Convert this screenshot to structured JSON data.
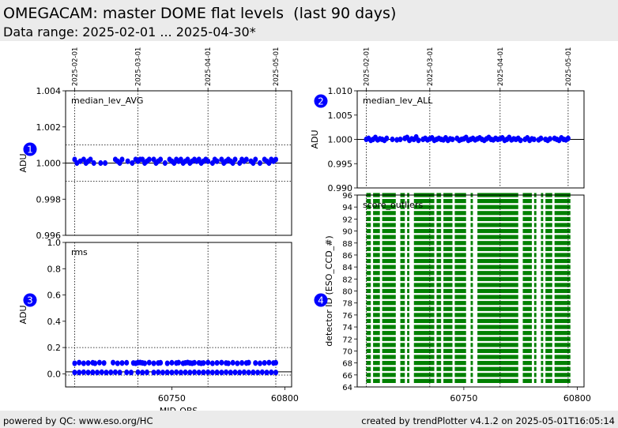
{
  "header": {
    "title": "OMEGACAM: master DOME flat levels  (last 90 days)",
    "subtitle": "Data range: 2025-02-01 ... 2025-04-30*"
  },
  "footer": {
    "left": "powered by QC: www.eso.org/HC",
    "right": "created by trendPlotter v4.1.2 on 2025-05-01T16:05:14"
  },
  "colors": {
    "points": "#0000ff",
    "bars": "#008000",
    "badge": "#0000ff",
    "header_bg": "#ebebeb"
  },
  "chart_data": [
    {
      "id": 1,
      "type": "scatter",
      "badge": "1",
      "annotation": "median_lev_AVG",
      "ylabel": "ADU",
      "xlabel": "",
      "xlim": [
        60703,
        60803
      ],
      "ylim": [
        0.996,
        1.004
      ],
      "yticks": [
        "0.996",
        "0.998",
        "1.000",
        "1.002",
        "1.004"
      ],
      "ytick_values": [
        0.996,
        0.998,
        1.0,
        1.002,
        1.004
      ],
      "date_ticks": [
        {
          "label": "2025-02-01",
          "mjd": 60707
        },
        {
          "label": "2025-03-01",
          "mjd": 60735
        },
        {
          "label": "2025-04-01",
          "mjd": 60766
        },
        {
          "label": "2025-05-01",
          "mjd": 60796
        }
      ],
      "hlines": [
        {
          "y": 1.0,
          "style": "solid"
        },
        {
          "y": 1.001,
          "style": "dotted"
        },
        {
          "y": 0.999,
          "style": "dotted"
        }
      ],
      "x": [
        60707,
        60708,
        60709.5,
        60711,
        60712,
        60713,
        60714,
        60715.5,
        60718.5,
        60720.5,
        60725,
        60726,
        60727,
        60728,
        60730.5,
        60732.5,
        60734,
        60735,
        60736,
        60737,
        60738,
        60739,
        60740,
        60742,
        60743,
        60744,
        60745,
        60747,
        60749,
        60750,
        60751,
        60752,
        60753,
        60754,
        60755,
        60756,
        60757,
        60758,
        60759,
        60760,
        60761,
        60762,
        60763,
        60764,
        60765,
        60766,
        60768,
        60769,
        60770,
        60772,
        60773,
        60774,
        60775,
        60776,
        60777,
        60778,
        60780,
        60781,
        60782,
        60783,
        60785,
        60786,
        60787,
        60789,
        60791,
        60792,
        60793,
        60794,
        60795,
        60796
      ],
      "y": [
        1.0002,
        1.0,
        1.0001,
        1.0002,
        1.0,
        1.0001,
        1.0002,
        1.0,
        1.0,
        1.0,
        1.0002,
        1.0001,
        1.0,
        1.0002,
        1.0001,
        1.0,
        1.0002,
        1.0001,
        1.0002,
        1.0002,
        1.0,
        1.0001,
        1.0002,
        1.0002,
        1.0,
        1.0001,
        1.0002,
        1.0,
        1.0002,
        1.0001,
        1.0,
        1.0002,
        1.0001,
        1.0002,
        1.0,
        1.0001,
        1.0002,
        1.0,
        1.0001,
        1.0002,
        1.0001,
        1.0002,
        1.0,
        1.0001,
        1.0002,
        1.0001,
        1.0,
        1.0002,
        1.0001,
        1.0002,
        1.0,
        1.0001,
        1.0002,
        1.0001,
        1.0,
        1.0002,
        1.0,
        1.0002,
        1.0001,
        1.0002,
        1.0001,
        1.0,
        1.0002,
        1.0,
        1.0002,
        1.0001,
        1.0,
        1.0002,
        1.0001,
        1.0002
      ]
    },
    {
      "id": 2,
      "type": "scatter",
      "badge": "2",
      "annotation": "median_lev_ALL",
      "ylabel": "ADU",
      "xlabel": "",
      "xlim": [
        60703,
        60803
      ],
      "ylim": [
        0.99,
        1.01
      ],
      "yticks": [
        "0.990",
        "0.995",
        "1.000",
        "1.005",
        "1.010"
      ],
      "ytick_values": [
        0.99,
        0.995,
        1.0,
        1.005,
        1.01
      ],
      "date_ticks": [
        {
          "label": "2025-02-01",
          "mjd": 60707
        },
        {
          "label": "2025-03-01",
          "mjd": 60735
        },
        {
          "label": "2025-04-01",
          "mjd": 60766
        },
        {
          "label": "2025-05-01",
          "mjd": 60796
        }
      ],
      "hlines": [
        {
          "y": 1.0,
          "style": "solid"
        }
      ],
      "x": [
        60707,
        60708,
        60709,
        60710,
        60711,
        60712,
        60713,
        60714,
        60715,
        60716,
        60718.5,
        60720.5,
        60722,
        60724,
        60725,
        60726,
        60727,
        60728,
        60729,
        60730,
        60732,
        60733,
        60734,
        60735,
        60736,
        60737,
        60738,
        60739,
        60740,
        60741,
        60742,
        60743,
        60744,
        60745,
        60747,
        60748,
        60749,
        60750,
        60751,
        60752,
        60753,
        60754,
        60755,
        60756,
        60757,
        60758,
        60759,
        60760,
        60761,
        60762,
        60763,
        60764,
        60765,
        60766,
        60767,
        60768,
        60769,
        60770,
        60771,
        60772,
        60773,
        60774,
        60775,
        60777,
        60778,
        60779,
        60780,
        60781,
        60783,
        60784,
        60786,
        60787,
        60788,
        60790,
        60791,
        60792,
        60793,
        60794,
        60795,
        60796
      ],
      "y": [
        1.0,
        1.0002,
        0.9998,
        1.0,
        1.0004,
        0.9999,
        1.0001,
        1.0,
        0.9998,
        1.0002,
        1.0,
        0.9999,
        1.0,
        1.0002,
        1.0004,
        0.9998,
        1.0001,
        1.0,
        1.0005,
        0.9998,
        1.0,
        1.0002,
        0.9999,
        1.0001,
        1.0003,
        0.9998,
        1.0,
        1.0002,
        1.0,
        0.9999,
        1.0003,
        0.9998,
        1.0001,
        1.0,
        1.0002,
        0.9998,
        1.0,
        1.0001,
        1.0004,
        0.9998,
        1.0,
        1.0002,
        0.9999,
        1.0001,
        1.0003,
        1.0,
        0.9998,
        1.0001,
        1.0004,
        1.0,
        0.9999,
        1.0002,
        1.0,
        1.0001,
        1.0003,
        0.9998,
        1.0,
        1.0004,
        0.9999,
        1.0001,
        1.0,
        1.0002,
        0.9998,
        1.0,
        1.0003,
        0.9998,
        1.0001,
        1.0,
        0.9999,
        1.0002,
        1.0,
        0.9998,
        1.0001,
        1.0002,
        1.0,
        0.9998,
        1.0003,
        1.0,
        0.9999,
        1.0002
      ]
    },
    {
      "id": 3,
      "type": "scatter",
      "badge": "3",
      "annotation": "rms",
      "ylabel": "ADU",
      "xlabel": "MJD-OBS",
      "xlim": [
        60703,
        60803
      ],
      "ylim": [
        -0.1,
        1.0
      ],
      "yticks": [
        "0.0",
        "0.2",
        "0.4",
        "0.6",
        "0.8",
        "1.0"
      ],
      "ytick_values": [
        0.0,
        0.2,
        0.4,
        0.6,
        0.8,
        1.0
      ],
      "xticks": [
        "60750",
        "60800"
      ],
      "xtick_values": [
        60750,
        60800
      ],
      "date_ticks": [
        {
          "label": "2025-02-01",
          "mjd": 60707
        },
        {
          "label": "2025-03-01",
          "mjd": 60735
        },
        {
          "label": "2025-04-01",
          "mjd": 60766
        },
        {
          "label": "2025-05-01",
          "mjd": 60796
        }
      ],
      "hlines": [
        {
          "y": 0.015,
          "style": "solid"
        },
        {
          "y": 0.2,
          "style": "dotted"
        },
        {
          "y": -0.01,
          "style": "dotted"
        }
      ],
      "x": [
        60707,
        60709,
        60711,
        60713,
        60715,
        60716,
        60718,
        60720,
        60724,
        60726,
        60728,
        60730,
        60733,
        60734,
        60735,
        60736,
        60737,
        60738,
        60740,
        60742,
        60744,
        60745,
        60748,
        60750,
        60752,
        60753,
        60755,
        60756,
        60757,
        60758,
        60759,
        60760,
        60762,
        60763,
        60764,
        60766,
        60768,
        60770,
        60772,
        60774,
        60775,
        60777,
        60779,
        60781,
        60783,
        60784,
        60787,
        60789,
        60791,
        60793,
        60795,
        60796
      ],
      "y": [
        0.08,
        0.085,
        0.08,
        0.082,
        0.084,
        0.08,
        0.085,
        0.082,
        0.085,
        0.08,
        0.082,
        0.084,
        0.082,
        0.08,
        0.085,
        0.086,
        0.083,
        0.08,
        0.085,
        0.08,
        0.082,
        0.084,
        0.08,
        0.084,
        0.082,
        0.085,
        0.08,
        0.083,
        0.086,
        0.082,
        0.08,
        0.084,
        0.083,
        0.08,
        0.082,
        0.085,
        0.08,
        0.083,
        0.085,
        0.082,
        0.08,
        0.084,
        0.08,
        0.083,
        0.082,
        0.085,
        0.082,
        0.08,
        0.083,
        0.085,
        0.082,
        0.084
      ],
      "x_low": [
        60707,
        60709,
        60711,
        60713,
        60715,
        60717,
        60719,
        60721,
        60723,
        60725,
        60727,
        60730,
        60732,
        60735,
        60737,
        60739,
        60742,
        60744,
        60746,
        60748,
        60750,
        60752,
        60754,
        60756,
        60758,
        60760,
        60762,
        60764,
        60766,
        60768,
        60770,
        60772,
        60774,
        60776,
        60778,
        60780,
        60782,
        60784,
        60786,
        60788,
        60790,
        60792,
        60794,
        60796
      ],
      "y_low": [
        0.01,
        0.01,
        0.012,
        0.01,
        0.011,
        0.01,
        0.012,
        0.01,
        0.011,
        0.012,
        0.01,
        0.011,
        0.01,
        0.012,
        0.01,
        0.011,
        0.01,
        0.012,
        0.01,
        0.011,
        0.01,
        0.012,
        0.01,
        0.011,
        0.01,
        0.012,
        0.01,
        0.011,
        0.012,
        0.01,
        0.011,
        0.01,
        0.012,
        0.01,
        0.011,
        0.01,
        0.012,
        0.01,
        0.011,
        0.01,
        0.012,
        0.01,
        0.011,
        0.01
      ]
    },
    {
      "id": 4,
      "type": "bar",
      "badge": "4",
      "annotation": "score_outliers",
      "ylabel": "detector ID (ESO_CCD_#)",
      "xlabel": "",
      "xlim": [
        60703,
        60803
      ],
      "ylim": [
        64,
        96
      ],
      "yticks": [
        "64",
        "66",
        "68",
        "70",
        "72",
        "74",
        "76",
        "78",
        "80",
        "82",
        "84",
        "86",
        "88",
        "90",
        "92",
        "94",
        "96"
      ],
      "ytick_values": [
        64,
        66,
        68,
        70,
        72,
        74,
        76,
        78,
        80,
        82,
        84,
        86,
        88,
        90,
        92,
        94,
        96
      ],
      "xticks": [
        "60750",
        "60800"
      ],
      "xtick_values": [
        60750,
        60800
      ],
      "date_ticks": [
        {
          "label": "2025-02-01",
          "mjd": 60707
        },
        {
          "label": "2025-03-01",
          "mjd": 60735
        },
        {
          "label": "2025-04-01",
          "mjd": 60766
        },
        {
          "label": "2025-05-01",
          "mjd": 60796
        }
      ],
      "detectors": [
        65,
        66,
        67,
        68,
        69,
        70,
        71,
        72,
        73,
        74,
        75,
        76,
        77,
        78,
        79,
        80,
        81,
        82,
        83,
        84,
        85,
        86,
        87,
        88,
        89,
        90,
        91,
        92,
        93,
        94,
        95,
        96
      ],
      "x_ranges": [
        [
          60707,
          60709
        ],
        [
          60710,
          60713
        ],
        [
          60714,
          60720
        ],
        [
          60722,
          60724
        ],
        [
          60725,
          60726
        ],
        [
          60728,
          60737
        ],
        [
          60738,
          60740
        ],
        [
          60741,
          60745
        ],
        [
          60746,
          60751
        ],
        [
          60753,
          60754
        ],
        [
          60756,
          60774
        ],
        [
          60776,
          60780
        ],
        [
          60781,
          60782
        ],
        [
          60784,
          60785
        ],
        [
          60786,
          60789
        ],
        [
          60790,
          60797
        ]
      ]
    }
  ]
}
